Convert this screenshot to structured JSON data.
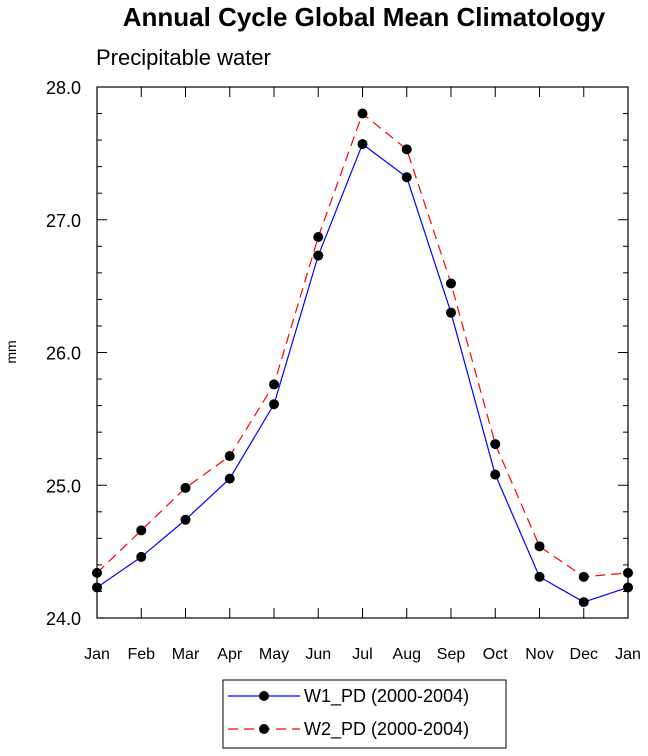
{
  "chart_data": {
    "type": "line",
    "title": "Annual Cycle Global Mean Climatology",
    "subtitle": "Precipitable water",
    "xlabel": "",
    "ylabel": "mm",
    "categories": [
      "Jan",
      "Feb",
      "Mar",
      "Apr",
      "May",
      "Jun",
      "Jul",
      "Aug",
      "Sep",
      "Oct",
      "Nov",
      "Dec",
      "Jan"
    ],
    "ylim": [
      24.0,
      28.0
    ],
    "yticks": [
      "24.0",
      "25.0",
      "26.0",
      "27.0",
      "28.0"
    ],
    "series": [
      {
        "name": "W1_PD (2000-2004)",
        "color": "#0000ff",
        "dash": "solid",
        "values": [
          24.23,
          24.46,
          24.74,
          25.05,
          25.61,
          26.73,
          27.57,
          27.32,
          26.3,
          25.08,
          24.31,
          24.12,
          24.23
        ]
      },
      {
        "name": "W2_PD (2000-2004)",
        "color": "#ff0000",
        "dash": "dashed",
        "values": [
          24.34,
          24.66,
          24.98,
          25.22,
          25.76,
          26.87,
          27.8,
          27.53,
          26.52,
          25.31,
          24.54,
          24.31,
          24.34
        ]
      }
    ],
    "legend_position": "bottom-center",
    "grid": false
  }
}
